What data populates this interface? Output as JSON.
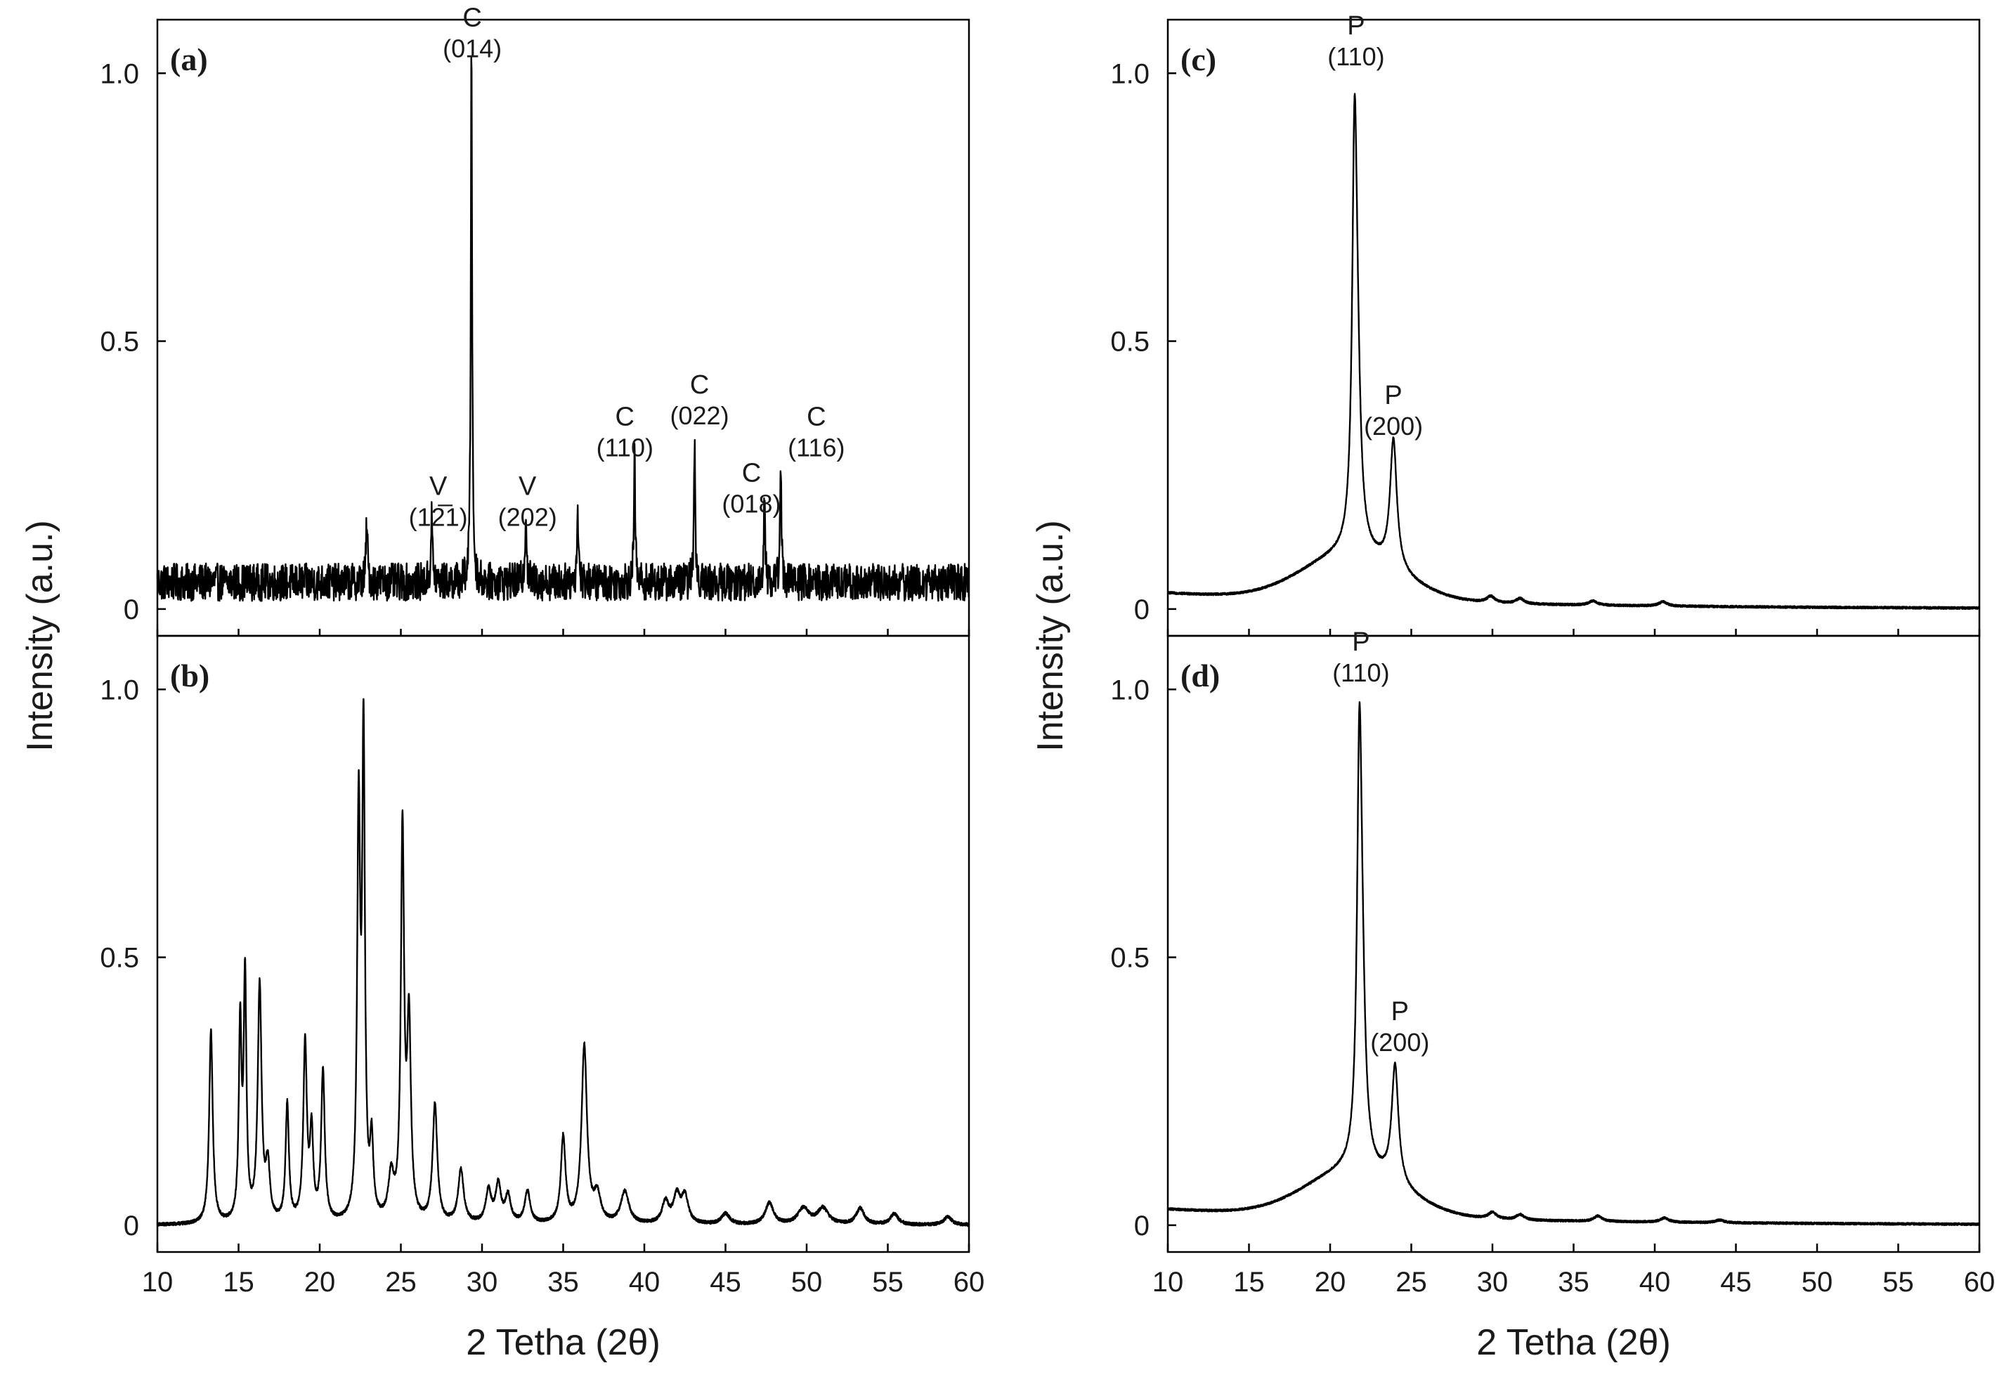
{
  "chart_data": [
    {
      "id": "a",
      "type": "line",
      "panel_label": "(a)",
      "title": "",
      "xlabel": "2 Tetha (2θ)",
      "ylabel": "Intensity (a.u.)",
      "xlim": [
        10,
        60
      ],
      "ylim": [
        -0.05,
        1.1
      ],
      "yticks": [
        "0",
        "0.5",
        "1.0"
      ],
      "ytick_values": [
        0,
        0.5,
        1.0
      ],
      "noise_level": 0.05,
      "noise_amplitude": 0.035,
      "peaks": [
        {
          "x": 22.9,
          "h": 0.11,
          "w": 0.06
        },
        {
          "x": 26.9,
          "h": 0.12,
          "w": 0.06
        },
        {
          "x": 29.35,
          "h": 1.0,
          "w": 0.05
        },
        {
          "x": 32.7,
          "h": 0.13,
          "w": 0.06
        },
        {
          "x": 35.9,
          "h": 0.13,
          "w": 0.06
        },
        {
          "x": 39.4,
          "h": 0.23,
          "w": 0.05
        },
        {
          "x": 43.1,
          "h": 0.26,
          "w": 0.05
        },
        {
          "x": 47.4,
          "h": 0.16,
          "w": 0.05
        },
        {
          "x": 48.4,
          "h": 0.24,
          "w": 0.05
        }
      ],
      "annotations": [
        {
          "phase": "C",
          "hkl": "(014)",
          "x": 29.4,
          "y": 1.03
        },
        {
          "phase": "V",
          "hkl": "(12̅1)",
          "x": 27.3,
          "y": 0.155
        },
        {
          "phase": "V",
          "hkl": "(202)",
          "x": 32.8,
          "y": 0.155
        },
        {
          "phase": "C",
          "hkl": "(110)",
          "x": 38.8,
          "y": 0.285
        },
        {
          "phase": "C",
          "hkl": "(022)",
          "x": 43.4,
          "y": 0.345
        },
        {
          "phase": "C",
          "hkl": "(018)",
          "x": 46.6,
          "y": 0.18
        },
        {
          "phase": "C",
          "hkl": "(116)",
          "x": 50.6,
          "y": 0.285
        }
      ]
    },
    {
      "id": "b",
      "type": "line",
      "panel_label": "(b)",
      "title": "",
      "xlabel": "2 Tetha (2θ)",
      "ylabel": "Intensity (a.u.)",
      "xlim": [
        10,
        60
      ],
      "xticks": [
        "10",
        "15",
        "20",
        "25",
        "30",
        "35",
        "40",
        "45",
        "50",
        "55",
        "60"
      ],
      "xtick_values": [
        10,
        15,
        20,
        25,
        30,
        35,
        40,
        45,
        50,
        55,
        60
      ],
      "ylim": [
        -0.05,
        1.1
      ],
      "yticks": [
        "0",
        "0.5",
        "1.0"
      ],
      "ytick_values": [
        0,
        0.5,
        1.0
      ],
      "baseline": 0.0,
      "peaks": [
        {
          "x": 13.3,
          "h": 0.36,
          "w": 0.13
        },
        {
          "x": 15.1,
          "h": 0.36,
          "w": 0.1
        },
        {
          "x": 15.4,
          "h": 0.45,
          "w": 0.1
        },
        {
          "x": 16.3,
          "h": 0.44,
          "w": 0.14
        },
        {
          "x": 16.8,
          "h": 0.1,
          "w": 0.15
        },
        {
          "x": 18.0,
          "h": 0.22,
          "w": 0.12
        },
        {
          "x": 19.1,
          "h": 0.33,
          "w": 0.13
        },
        {
          "x": 19.5,
          "h": 0.16,
          "w": 0.12
        },
        {
          "x": 20.2,
          "h": 0.28,
          "w": 0.13
        },
        {
          "x": 22.4,
          "h": 0.75,
          "w": 0.11
        },
        {
          "x": 22.7,
          "h": 0.88,
          "w": 0.1
        },
        {
          "x": 23.2,
          "h": 0.14,
          "w": 0.12
        },
        {
          "x": 24.4,
          "h": 0.08,
          "w": 0.2
        },
        {
          "x": 25.1,
          "h": 0.72,
          "w": 0.12
        },
        {
          "x": 25.5,
          "h": 0.36,
          "w": 0.14
        },
        {
          "x": 27.1,
          "h": 0.22,
          "w": 0.17
        },
        {
          "x": 28.7,
          "h": 0.1,
          "w": 0.2
        },
        {
          "x": 30.4,
          "h": 0.06,
          "w": 0.2
        },
        {
          "x": 31.0,
          "h": 0.07,
          "w": 0.2
        },
        {
          "x": 31.6,
          "h": 0.05,
          "w": 0.2
        },
        {
          "x": 32.8,
          "h": 0.06,
          "w": 0.2
        },
        {
          "x": 35.0,
          "h": 0.16,
          "w": 0.17
        },
        {
          "x": 36.3,
          "h": 0.33,
          "w": 0.2
        },
        {
          "x": 37.1,
          "h": 0.05,
          "w": 0.25
        },
        {
          "x": 38.8,
          "h": 0.06,
          "w": 0.3
        },
        {
          "x": 41.3,
          "h": 0.04,
          "w": 0.25
        },
        {
          "x": 42.0,
          "h": 0.05,
          "w": 0.25
        },
        {
          "x": 42.5,
          "h": 0.05,
          "w": 0.25
        },
        {
          "x": 45.0,
          "h": 0.02,
          "w": 0.3
        },
        {
          "x": 47.7,
          "h": 0.04,
          "w": 0.3
        },
        {
          "x": 49.8,
          "h": 0.03,
          "w": 0.4
        },
        {
          "x": 51.0,
          "h": 0.03,
          "w": 0.4
        },
        {
          "x": 53.3,
          "h": 0.03,
          "w": 0.3
        },
        {
          "x": 55.4,
          "h": 0.02,
          "w": 0.3
        },
        {
          "x": 58.7,
          "h": 0.015,
          "w": 0.3
        }
      ]
    },
    {
      "id": "c",
      "type": "line",
      "panel_label": "(c)",
      "title": "",
      "xlabel": "2 Tetha (2θ)",
      "ylabel": "Intensity (a.u.)",
      "xlim": [
        10,
        60
      ],
      "ylim": [
        -0.05,
        1.1
      ],
      "yticks": [
        "0",
        "0.5",
        "1.0"
      ],
      "ytick_values": [
        0,
        0.5,
        1.0
      ],
      "halo": {
        "center": 21.3,
        "height": 0.085,
        "width": 3.0
      },
      "peaks": [
        {
          "x": 21.5,
          "h": 0.63,
          "w": 0.17
        },
        {
          "x": 21.65,
          "h": 0.3,
          "w": 0.25
        },
        {
          "x": 23.9,
          "h": 0.24,
          "w": 0.25
        },
        {
          "x": 29.9,
          "h": 0.012,
          "w": 0.3
        },
        {
          "x": 31.7,
          "h": 0.01,
          "w": 0.3
        },
        {
          "x": 36.2,
          "h": 0.008,
          "w": 0.3
        },
        {
          "x": 40.5,
          "h": 0.008,
          "w": 0.3
        }
      ],
      "annotations": [
        {
          "phase": "P",
          "hkl": "(110)",
          "x": 21.6,
          "y": 1.015
        },
        {
          "phase": "P",
          "hkl": "(200)",
          "x": 23.9,
          "y": 0.325
        }
      ]
    },
    {
      "id": "d",
      "type": "line",
      "panel_label": "(d)",
      "title": "",
      "xlabel": "2 Tetha (2θ)",
      "ylabel": "Intensity (a.u.)",
      "xlim": [
        10,
        60
      ],
      "xticks": [
        "10",
        "15",
        "20",
        "25",
        "30",
        "35",
        "40",
        "45",
        "50",
        "55",
        "60"
      ],
      "xtick_values": [
        10,
        15,
        20,
        25,
        30,
        35,
        40,
        45,
        50,
        55,
        60
      ],
      "ylim": [
        -0.05,
        1.1
      ],
      "yticks": [
        "0",
        "0.5",
        "1.0"
      ],
      "ytick_values": [
        0,
        0.5,
        1.0
      ],
      "halo": {
        "center": 21.5,
        "height": 0.085,
        "width": 3.0
      },
      "peaks": [
        {
          "x": 21.8,
          "h": 0.66,
          "w": 0.17
        },
        {
          "x": 21.95,
          "h": 0.28,
          "w": 0.25
        },
        {
          "x": 24.0,
          "h": 0.22,
          "w": 0.25
        },
        {
          "x": 30.0,
          "h": 0.012,
          "w": 0.3
        },
        {
          "x": 31.7,
          "h": 0.01,
          "w": 0.3
        },
        {
          "x": 36.5,
          "h": 0.01,
          "w": 0.3
        },
        {
          "x": 40.6,
          "h": 0.008,
          "w": 0.3
        },
        {
          "x": 44.0,
          "h": 0.005,
          "w": 0.3
        }
      ],
      "annotations": [
        {
          "phase": "P",
          "hkl": "(110)",
          "x": 21.9,
          "y": 1.015
        },
        {
          "phase": "P",
          "hkl": "(200)",
          "x": 24.3,
          "y": 0.325
        }
      ]
    }
  ]
}
